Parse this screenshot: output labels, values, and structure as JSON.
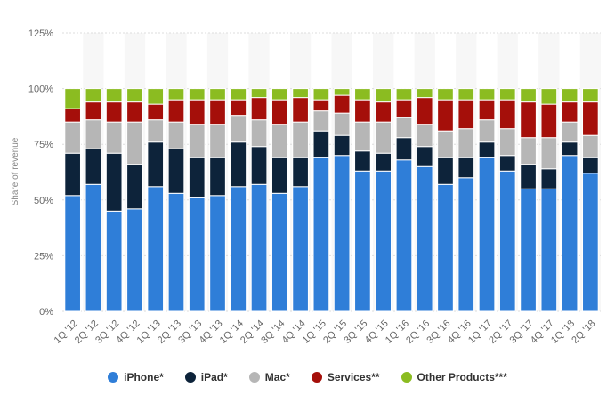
{
  "chart_data": {
    "type": "bar",
    "stacked": true,
    "ylabel": "Share of revenue",
    "ylim": [
      0,
      125
    ],
    "yticks": [
      "0%",
      "25%",
      "50%",
      "75%",
      "100%",
      "125%"
    ],
    "grid": true,
    "legend_position": "bottom",
    "categories": [
      "1Q '12",
      "2Q '12",
      "3Q '12",
      "4Q '12",
      "1Q '13",
      "2Q '13",
      "3Q '13",
      "4Q '13",
      "1Q '14",
      "2Q '14",
      "3Q '14",
      "4Q '14",
      "1Q '15",
      "2Q '15",
      "3Q '15",
      "4Q '15",
      "1Q '16",
      "2Q '16",
      "3Q '16",
      "4Q '16",
      "1Q '17",
      "2Q '17",
      "3Q '17",
      "4Q '17",
      "1Q '18",
      "2Q '18"
    ],
    "series": [
      {
        "name": "iPhone*",
        "color": "#2f7ed8",
        "values": [
          52,
          57,
          45,
          46,
          56,
          53,
          51,
          52,
          56,
          57,
          53,
          56,
          69,
          70,
          63,
          63,
          68,
          65,
          57,
          60,
          69,
          63,
          55,
          55,
          70,
          62
        ]
      },
      {
        "name": "iPad*",
        "color": "#0d233a",
        "values": [
          19,
          16,
          26,
          20,
          20,
          20,
          18,
          17,
          20,
          17,
          16,
          13,
          12,
          9,
          9,
          8,
          10,
          9,
          12,
          9,
          7,
          7,
          11,
          9,
          6,
          7
        ]
      },
      {
        "name": "Mac*",
        "color": "#b6b6b6",
        "values": [
          14,
          13,
          14,
          19,
          10,
          12,
          15,
          15,
          12,
          12,
          15,
          16,
          9,
          10,
          13,
          14,
          9,
          10,
          12,
          13,
          10,
          12,
          12,
          14,
          9,
          10
        ]
      },
      {
        "name": "Services**",
        "color": "#a50f0a",
        "values": [
          6,
          8,
          9,
          9,
          7,
          10,
          11,
          11,
          7,
          10,
          11,
          11,
          5,
          8,
          10,
          9,
          8,
          12,
          14,
          13,
          9,
          13,
          16,
          15,
          9,
          15
        ]
      },
      {
        "name": "Other Products***",
        "color": "#8bbc21",
        "values": [
          9,
          6,
          6,
          6,
          7,
          5,
          5,
          5,
          5,
          4,
          5,
          4,
          5,
          3,
          5,
          6,
          5,
          4,
          5,
          5,
          5,
          5,
          6,
          7,
          6,
          6
        ]
      }
    ]
  }
}
